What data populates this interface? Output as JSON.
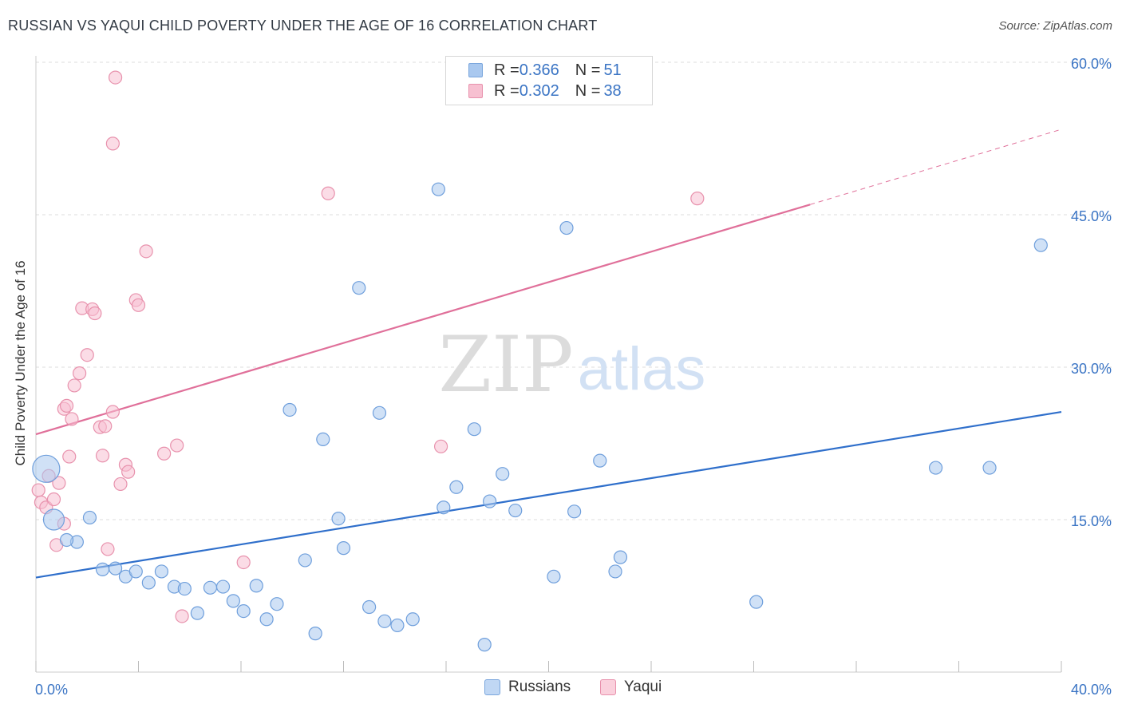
{
  "header": {
    "title": "RUSSIAN VS YAQUI CHILD POVERTY UNDER THE AGE OF 16 CORRELATION CHART",
    "source": "Source: ZipAtlas.com"
  },
  "watermark": {
    "zip": "ZIP",
    "atlas": "atlas"
  },
  "legend": {
    "rows": [
      {
        "r_label": "R = ",
        "r_value": "0.366",
        "n_label": "N = ",
        "n_value": "51",
        "color": "#a9c8ef",
        "border": "#7aa6dd"
      },
      {
        "r_label": "R = ",
        "r_value": "0.302",
        "n_label": "N = ",
        "n_value": "38",
        "color": "#f7c0d1",
        "border": "#e892ad"
      }
    ]
  },
  "bottom_legend": {
    "items": [
      {
        "label": "Russians",
        "color": "#c0d7f4",
        "border": "#7aa6dd"
      },
      {
        "label": "Yaqui",
        "color": "#fad0dc",
        "border": "#e892ad"
      }
    ]
  },
  "chart_data": {
    "type": "scatter",
    "title": "RUSSIAN VS YAQUI CHILD POVERTY UNDER THE AGE OF 16 CORRELATION CHART",
    "xlabel": "",
    "ylabel": "Child Poverty Under the Age of 16",
    "xlim": [
      0,
      40
    ],
    "ylim": [
      0,
      63
    ],
    "x_tick_labels": [
      {
        "value": 0,
        "label": "0.0%"
      },
      {
        "value": 40,
        "label": "40.0%"
      }
    ],
    "y_tick_labels": [
      {
        "value": 15,
        "label": "15.0%"
      },
      {
        "value": 30,
        "label": "30.0%"
      },
      {
        "value": 45,
        "label": "45.0%"
      },
      {
        "value": 60,
        "label": "60.0%"
      }
    ],
    "x_minor_ticks": [
      0,
      4,
      8,
      12,
      16,
      20,
      24,
      28,
      32,
      36,
      40
    ],
    "grid": true,
    "legend_placement": "top-center",
    "series": [
      {
        "name": "Russians",
        "color": "#6f9fdc",
        "fill": "#a9c8ef",
        "line_color": "#2f6fcb",
        "R": 0.366,
        "N": 51,
        "trend": {
          "x": [
            0,
            40
          ],
          "y": [
            9.3,
            25.6
          ]
        },
        "points": [
          {
            "x": 0.4,
            "y": 20.0,
            "s": "large"
          },
          {
            "x": 0.7,
            "y": 15.0,
            "s": "medium"
          },
          {
            "x": 1.6,
            "y": 12.8
          },
          {
            "x": 2.1,
            "y": 15.2
          },
          {
            "x": 1.2,
            "y": 13.0
          },
          {
            "x": 2.6,
            "y": 10.1
          },
          {
            "x": 3.1,
            "y": 10.2
          },
          {
            "x": 3.5,
            "y": 9.4
          },
          {
            "x": 3.9,
            "y": 9.9
          },
          {
            "x": 4.4,
            "y": 8.8
          },
          {
            "x": 4.9,
            "y": 9.9
          },
          {
            "x": 5.4,
            "y": 8.4
          },
          {
            "x": 5.8,
            "y": 8.2
          },
          {
            "x": 6.3,
            "y": 5.8
          },
          {
            "x": 6.8,
            "y": 8.3
          },
          {
            "x": 7.3,
            "y": 8.4
          },
          {
            "x": 7.7,
            "y": 7.0
          },
          {
            "x": 8.1,
            "y": 6.0
          },
          {
            "x": 8.6,
            "y": 8.5
          },
          {
            "x": 9.0,
            "y": 5.2
          },
          {
            "x": 9.4,
            "y": 6.7
          },
          {
            "x": 9.9,
            "y": 25.8
          },
          {
            "x": 10.5,
            "y": 11.0
          },
          {
            "x": 10.9,
            "y": 3.8
          },
          {
            "x": 11.2,
            "y": 22.9
          },
          {
            "x": 11.8,
            "y": 15.1
          },
          {
            "x": 12.0,
            "y": 12.2
          },
          {
            "x": 12.6,
            "y": 37.8
          },
          {
            "x": 13.0,
            "y": 6.4
          },
          {
            "x": 13.4,
            "y": 25.5
          },
          {
            "x": 13.6,
            "y": 5.0
          },
          {
            "x": 14.1,
            "y": 4.6
          },
          {
            "x": 14.7,
            "y": 5.2
          },
          {
            "x": 15.7,
            "y": 47.5
          },
          {
            "x": 15.9,
            "y": 16.2
          },
          {
            "x": 16.4,
            "y": 18.2
          },
          {
            "x": 17.1,
            "y": 23.9
          },
          {
            "x": 17.7,
            "y": 16.8
          },
          {
            "x": 18.2,
            "y": 19.5
          },
          {
            "x": 17.5,
            "y": 2.7
          },
          {
            "x": 18.7,
            "y": 15.9
          },
          {
            "x": 20.2,
            "y": 9.4
          },
          {
            "x": 20.7,
            "y": 43.7
          },
          {
            "x": 21.0,
            "y": 15.8
          },
          {
            "x": 22.0,
            "y": 20.8
          },
          {
            "x": 22.6,
            "y": 9.9
          },
          {
            "x": 22.8,
            "y": 11.3
          },
          {
            "x": 28.1,
            "y": 6.9
          },
          {
            "x": 35.1,
            "y": 20.1
          },
          {
            "x": 37.2,
            "y": 20.1
          },
          {
            "x": 39.2,
            "y": 42.0
          }
        ]
      },
      {
        "name": "Yaqui",
        "color": "#e892ad",
        "fill": "#f7c0d1",
        "line_color": "#e0709a",
        "R": 0.302,
        "N": 38,
        "trend": {
          "x": [
            0,
            30.2
          ],
          "y": [
            23.4,
            46.0
          ]
        },
        "trend_extension": {
          "x": [
            30.2,
            40
          ],
          "y": [
            46.0,
            53.4
          ]
        },
        "points": [
          {
            "x": 0.1,
            "y": 17.9
          },
          {
            "x": 0.2,
            "y": 16.7
          },
          {
            "x": 0.4,
            "y": 16.2
          },
          {
            "x": 0.5,
            "y": 19.3
          },
          {
            "x": 0.7,
            "y": 17.0
          },
          {
            "x": 0.8,
            "y": 12.5
          },
          {
            "x": 0.9,
            "y": 18.6
          },
          {
            "x": 1.1,
            "y": 14.6
          },
          {
            "x": 1.1,
            "y": 25.9
          },
          {
            "x": 1.2,
            "y": 26.2
          },
          {
            "x": 1.3,
            "y": 21.2
          },
          {
            "x": 1.4,
            "y": 24.9
          },
          {
            "x": 1.5,
            "y": 28.2
          },
          {
            "x": 1.7,
            "y": 29.4
          },
          {
            "x": 2.0,
            "y": 31.2
          },
          {
            "x": 1.8,
            "y": 35.8
          },
          {
            "x": 2.2,
            "y": 35.7
          },
          {
            "x": 2.3,
            "y": 35.3
          },
          {
            "x": 2.5,
            "y": 24.1
          },
          {
            "x": 2.6,
            "y": 21.3
          },
          {
            "x": 2.7,
            "y": 24.2
          },
          {
            "x": 2.8,
            "y": 12.1
          },
          {
            "x": 3.0,
            "y": 25.6
          },
          {
            "x": 3.0,
            "y": 52.0
          },
          {
            "x": 3.1,
            "y": 58.5
          },
          {
            "x": 3.3,
            "y": 18.5
          },
          {
            "x": 3.5,
            "y": 20.4
          },
          {
            "x": 3.6,
            "y": 19.7
          },
          {
            "x": 3.9,
            "y": 36.6
          },
          {
            "x": 4.0,
            "y": 36.1
          },
          {
            "x": 4.3,
            "y": 41.4
          },
          {
            "x": 5.0,
            "y": 21.5
          },
          {
            "x": 5.5,
            "y": 22.3
          },
          {
            "x": 5.7,
            "y": 5.5
          },
          {
            "x": 8.1,
            "y": 10.8
          },
          {
            "x": 11.4,
            "y": 47.1
          },
          {
            "x": 15.8,
            "y": 22.2
          },
          {
            "x": 25.8,
            "y": 46.6
          }
        ]
      }
    ]
  }
}
